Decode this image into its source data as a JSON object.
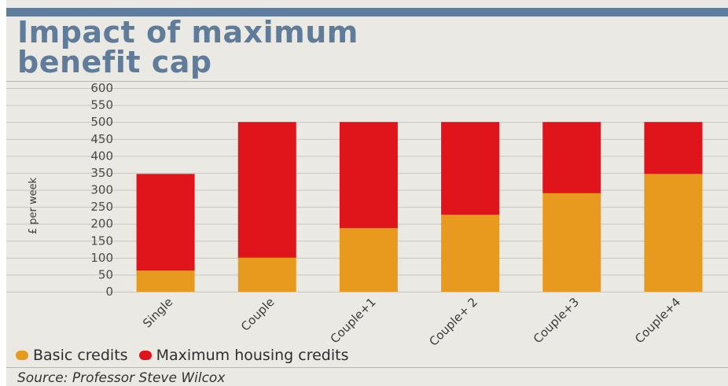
{
  "title_line1": "Impact of maximum",
  "title_line2": "benefit cap",
  "source": "Source: Professor Steve Wilcox",
  "colors": {
    "basic": "#e89a1e",
    "housing": "#e0141b",
    "title": "#5f7c9a",
    "background": "#ebe9e4"
  },
  "chart_data": {
    "type": "bar",
    "stacked": true,
    "categories": [
      "Single",
      "Couple",
      "Couple+1",
      "Couple+ 2",
      "Couple+3",
      "Couple+4"
    ],
    "series": [
      {
        "name": "Basic credits",
        "color": "#e89a1e",
        "values": [
          62,
          100,
          187,
          227,
          290,
          347
        ]
      },
      {
        "name": "Maximum housing credits",
        "color": "#e0141b",
        "values": [
          285,
          400,
          313,
          273,
          210,
          153
        ]
      }
    ],
    "ylabel": "£ per week",
    "ylim": [
      0,
      600
    ],
    "yticks": [
      0,
      50,
      100,
      150,
      200,
      250,
      300,
      350,
      400,
      450,
      500,
      550,
      600
    ],
    "grid": true,
    "legend_position": "bottom-left"
  }
}
